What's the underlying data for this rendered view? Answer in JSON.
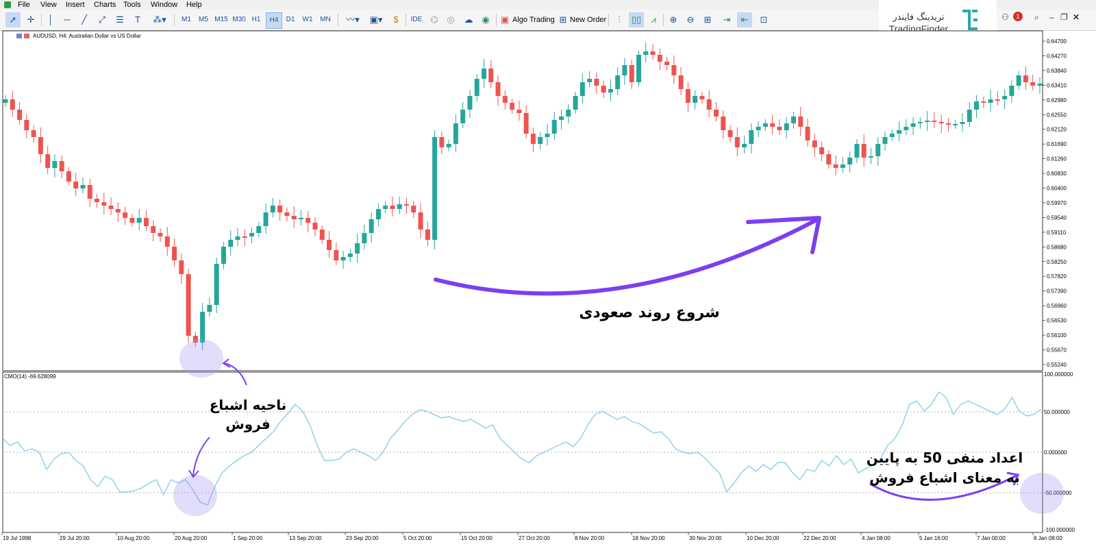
{
  "menu": {
    "items": [
      "File",
      "View",
      "Insert",
      "Charts",
      "Tools",
      "Window",
      "Help"
    ]
  },
  "toolbar": {
    "timeframes": [
      "M1",
      "M5",
      "M15",
      "M30",
      "H1",
      "H4",
      "D1",
      "W1",
      "MN"
    ],
    "active_timeframe": "H4",
    "ide_label": "IDE",
    "algo_trading_label": "Algo Trading",
    "new_order_label": "New Order"
  },
  "brand": {
    "name_fa": "تریدینگ فایندر",
    "name_en": "TradingFinder",
    "color": "#2aa8a8"
  },
  "window": {
    "notification_count": "1"
  },
  "chart": {
    "title": "AUDUSD, H4:  Australian Dollar vs US Dollar",
    "indicator_label": "CMO(14) -69.628099",
    "price_ticks": [
      "0.64700",
      "0.64270",
      "0.63840",
      "0.63410",
      "0.62980",
      "0.62550",
      "0.62120",
      "0.61690",
      "0.61260",
      "0.60830",
      "0.60400",
      "0.59970",
      "0.59540",
      "0.59110",
      "0.58680",
      "0.58250",
      "0.57820",
      "0.57390",
      "0.56960",
      "0.56530",
      "0.56100",
      "0.55670",
      "0.55240"
    ],
    "indicator_ticks": [
      "100.000000",
      "50.000000",
      "0.000000",
      "-50.000000",
      "-100.000000"
    ],
    "time_ticks": [
      "19 Jul 1998",
      "29 Jul 20:00",
      "10 Aug 20:00",
      "20 Aug 20:00",
      "1 Sep 20:00",
      "13 Sep 20:00",
      "23 Sep 20:00",
      "5 Oct 20:00",
      "15 Oct 20:00",
      "27 Oct 20:00",
      "8 Nov 20:00",
      "18 Nov 20:00",
      "30 Nov 20:00",
      "10 Dec 20:00",
      "22 Dec 20:00",
      "4 Jan 08:00",
      "5 Jan 16:00",
      "7 Jan 00:00",
      "8 Jan 08:00"
    ],
    "bull_color": "#26a69a",
    "bear_color": "#ef5350",
    "indicator_color": "#87ceeb",
    "annotation_color": "#7b3ff2"
  },
  "annotations": {
    "uptrend": "شروع روند صعودی",
    "oversold_zone": "ناحیه اشباع فروش",
    "below_minus_50": "اعداد منفی 50 به پایین به معنای اشباع فروش"
  }
}
